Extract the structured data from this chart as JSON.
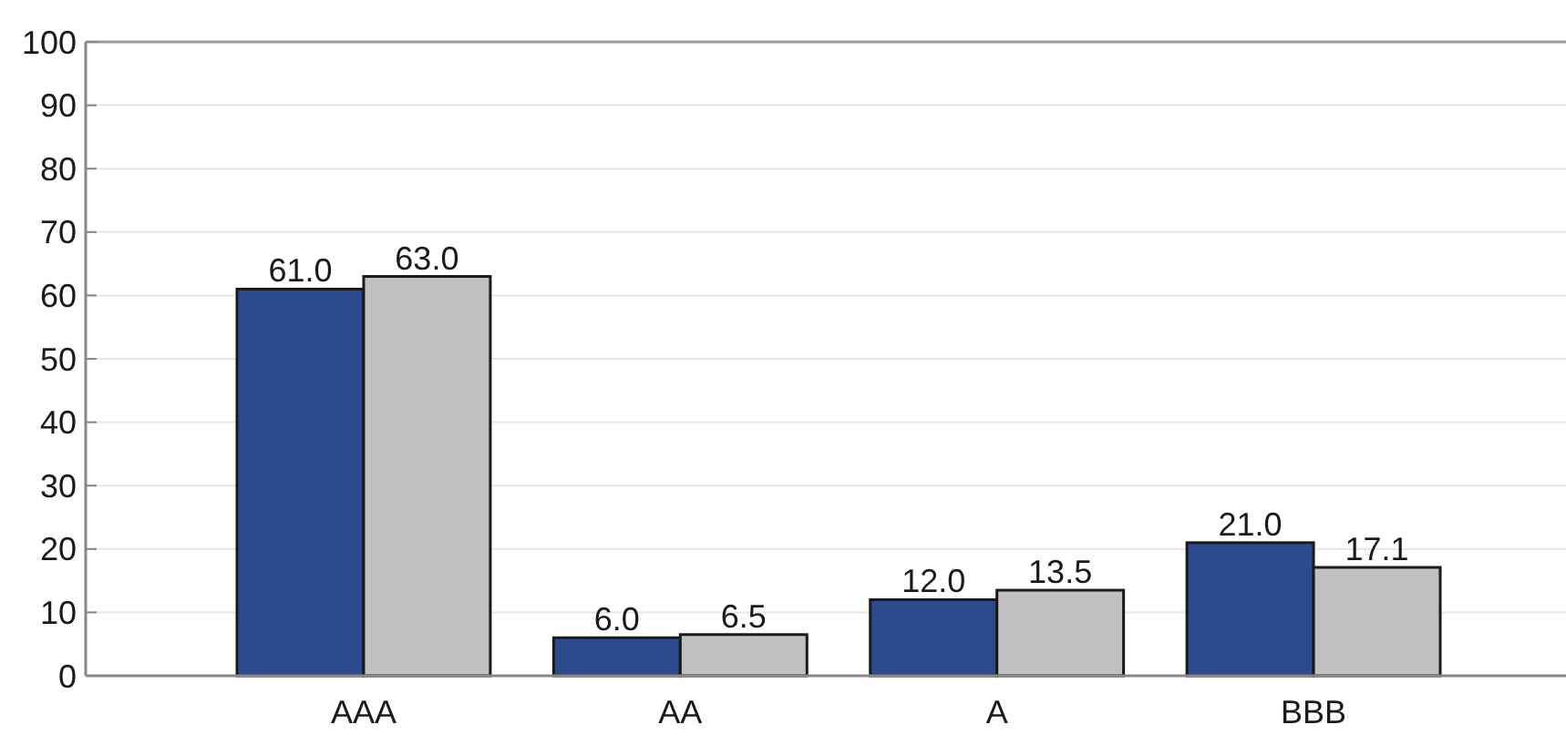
{
  "chart_data": {
    "type": "bar",
    "categories": [
      "AAA",
      "AA",
      "A",
      "BBB"
    ],
    "series": [
      {
        "color": "#2e4a8e",
        "values": [
          61,
          6,
          12,
          21
        ],
        "value_labels": [
          "61.0",
          "6.0",
          "12.0",
          "21.0"
        ]
      },
      {
        "color": "#c0c0c2",
        "values": [
          63,
          6.5,
          13.5,
          17.1
        ],
        "value_labels": [
          "63.0",
          "6.5",
          "13.5",
          "17.1"
        ]
      }
    ],
    "ylim": [
      0,
      100
    ],
    "yticks": [
      0,
      10,
      20,
      30,
      40,
      50,
      60,
      70,
      80,
      90,
      100
    ],
    "grid": "y"
  }
}
